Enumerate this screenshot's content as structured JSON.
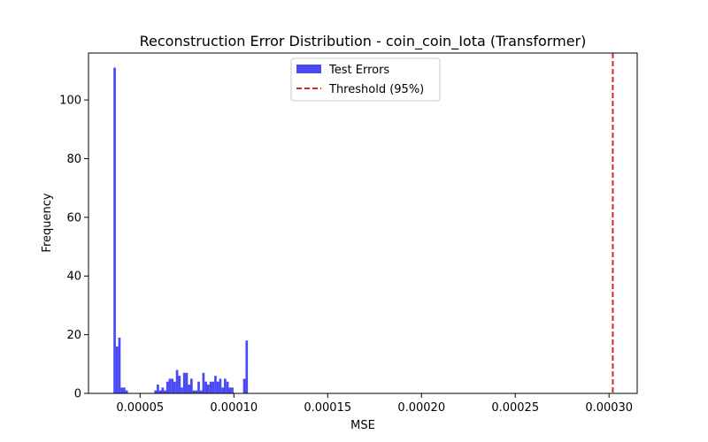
{
  "chart_data": {
    "type": "bar",
    "title": "Reconstruction Error Distribution - coin_coin_Iota (Transformer)",
    "xlabel": "MSE",
    "ylabel": "Frequency",
    "xlim": [
      2.25e-05,
      0.000315
    ],
    "ylim": [
      0,
      116
    ],
    "xticks": [
      {
        "value": 5e-05,
        "label": "0.00005"
      },
      {
        "value": 0.0001,
        "label": "0.00010"
      },
      {
        "value": 0.00015,
        "label": "0.00015"
      },
      {
        "value": 0.0002,
        "label": "0.00020"
      },
      {
        "value": 0.00025,
        "label": "0.00025"
      },
      {
        "value": 0.0003,
        "label": "0.00030"
      }
    ],
    "yticks": [
      {
        "value": 0,
        "label": "0"
      },
      {
        "value": 20,
        "label": "20"
      },
      {
        "value": 40,
        "label": "40"
      },
      {
        "value": 60,
        "label": "60"
      },
      {
        "value": 80,
        "label": "80"
      },
      {
        "value": 100,
        "label": "100"
      }
    ],
    "grid": false,
    "legend_position": "upper-center",
    "series": [
      {
        "name": "Test Errors",
        "kind": "histogram",
        "color": "#4949f5",
        "bin_start": 3.58e-05,
        "bin_width": 1.28e-06,
        "counts": [
          111,
          16,
          19,
          2,
          2,
          1,
          0,
          0,
          0,
          0,
          0,
          0,
          0,
          0,
          0,
          0,
          0,
          1,
          3,
          1,
          2,
          1,
          4,
          5,
          5,
          4,
          8,
          6,
          2,
          7,
          7,
          3,
          5,
          1,
          1,
          4,
          1,
          7,
          4,
          3,
          4,
          4,
          6,
          4,
          5,
          2,
          5,
          4,
          2,
          2,
          0,
          0,
          0,
          0,
          5,
          18
        ]
      },
      {
        "name": "Threshold (95%)",
        "kind": "vline",
        "color": "#d62728",
        "x": 0.000302
      }
    ]
  }
}
